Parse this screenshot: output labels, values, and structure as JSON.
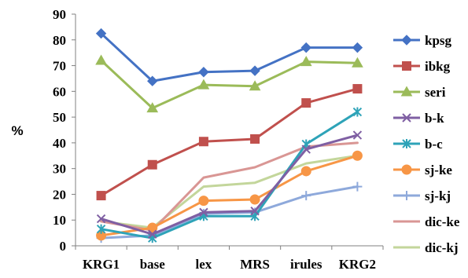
{
  "chart_data": {
    "type": "line",
    "title": "",
    "xlabel": "",
    "ylabel": "%",
    "ylim": [
      0,
      90
    ],
    "yticks": [
      0,
      10,
      20,
      30,
      40,
      50,
      60,
      70,
      80,
      90
    ],
    "categories": [
      "KRG1",
      "base",
      "lex",
      "MRS",
      "irules",
      "KRG2"
    ],
    "grid": false,
    "legend_position": "right",
    "series": [
      {
        "name": "kpsg",
        "color": "#4472C4",
        "marker": "diamond",
        "values": [
          82.5,
          64.0,
          67.5,
          68.0,
          77.0,
          77.0
        ]
      },
      {
        "name": "ibkg",
        "color": "#C0504D",
        "marker": "square",
        "values": [
          19.5,
          31.5,
          40.5,
          41.5,
          55.5,
          61.0
        ]
      },
      {
        "name": "seri",
        "color": "#9BBB59",
        "marker": "triangle",
        "values": [
          72.0,
          53.5,
          62.5,
          62.0,
          71.5,
          71.0
        ]
      },
      {
        "name": "b-k",
        "color": "#7F5FA3",
        "marker": "x",
        "values": [
          10.5,
          4.5,
          13.0,
          13.5,
          37.5,
          43.0
        ]
      },
      {
        "name": "b-c",
        "color": "#2EA3B8",
        "marker": "asterisk",
        "values": [
          6.5,
          3.0,
          11.5,
          11.5,
          39.5,
          52.0
        ]
      },
      {
        "name": "sj-ke",
        "color": "#F79646",
        "marker": "circle",
        "values": [
          4.0,
          7.0,
          17.5,
          18.0,
          29.0,
          35.0
        ]
      },
      {
        "name": "sj-kj",
        "color": "#8EA9DB",
        "marker": "plus",
        "values": [
          3.0,
          4.0,
          12.5,
          13.0,
          19.5,
          23.0
        ]
      },
      {
        "name": "dic-ke",
        "color": "#D99694",
        "marker": "none",
        "values": [
          9.5,
          6.0,
          26.5,
          30.5,
          38.5,
          40.0
        ]
      },
      {
        "name": "dic-kj",
        "color": "#C3D69B",
        "marker": "none",
        "values": [
          9.5,
          7.0,
          23.0,
          24.5,
          32.0,
          35.0
        ]
      }
    ]
  }
}
